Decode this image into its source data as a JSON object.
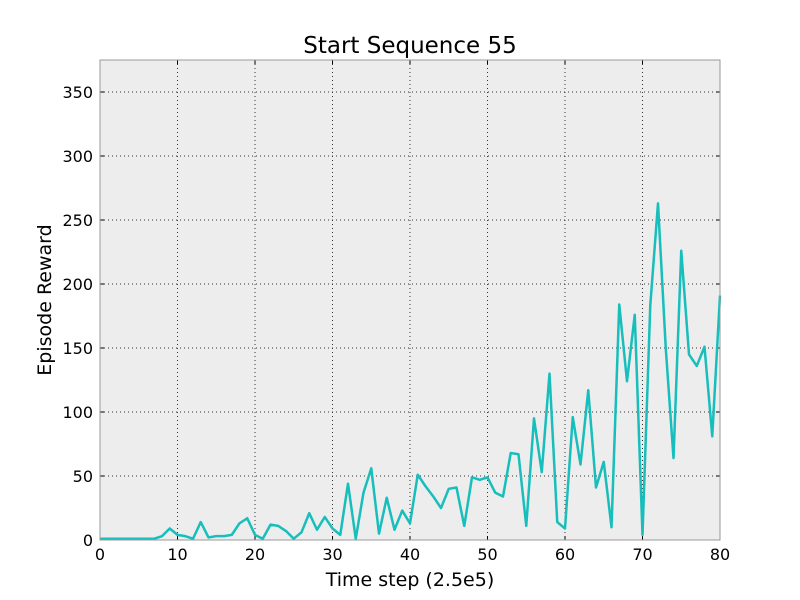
{
  "chart_data": {
    "type": "line",
    "title": "Start Sequence 55",
    "xlabel": "Time step (2.5e5)",
    "ylabel": "Episode Reward",
    "xlim": [
      0,
      80
    ],
    "ylim": [
      0,
      375
    ],
    "xticks": [
      0,
      10,
      20,
      30,
      40,
      50,
      60,
      70,
      80
    ],
    "yticks": [
      0,
      50,
      100,
      150,
      200,
      250,
      300,
      350
    ],
    "grid": true,
    "colors": {
      "line": "#17BEBB",
      "plot_bg": "#EDEDED",
      "grid": "#333333"
    },
    "series": [
      {
        "x": [
          0,
          1,
          2,
          3,
          4,
          5,
          6,
          7,
          8,
          9,
          10,
          11,
          12,
          13,
          14,
          15,
          16,
          17,
          18,
          19,
          20,
          21,
          22,
          23,
          24,
          25,
          26,
          27,
          28,
          29,
          30,
          31,
          32,
          33,
          34,
          35,
          36,
          37,
          38,
          39,
          40,
          41,
          42,
          43,
          44,
          45,
          46,
          47,
          48,
          49,
          50,
          51,
          52,
          53,
          54,
          55,
          56,
          57,
          58,
          59,
          60,
          61,
          62,
          63,
          64,
          65,
          66,
          67,
          68,
          69,
          70,
          71,
          72,
          73,
          74,
          75,
          76,
          77,
          78,
          79,
          80
        ],
        "y": [
          1,
          1,
          1,
          1,
          1,
          1,
          1,
          1,
          3,
          9,
          4,
          3,
          1,
          14,
          2,
          3,
          3,
          4,
          13,
          17,
          4,
          1,
          12,
          11,
          7,
          1,
          6,
          21,
          8,
          18,
          9,
          4,
          44,
          1,
          37,
          56,
          5,
          33,
          8,
          23,
          13,
          51,
          42,
          34,
          25,
          40,
          41,
          11,
          49,
          47,
          49,
          37,
          34,
          68,
          67,
          11,
          95,
          53,
          130,
          14,
          9,
          96,
          59,
          117,
          41,
          61,
          10,
          184,
          124,
          176,
          4,
          183,
          263,
          150,
          64,
          226,
          145,
          136,
          151,
          81,
          191
        ]
      }
    ]
  }
}
